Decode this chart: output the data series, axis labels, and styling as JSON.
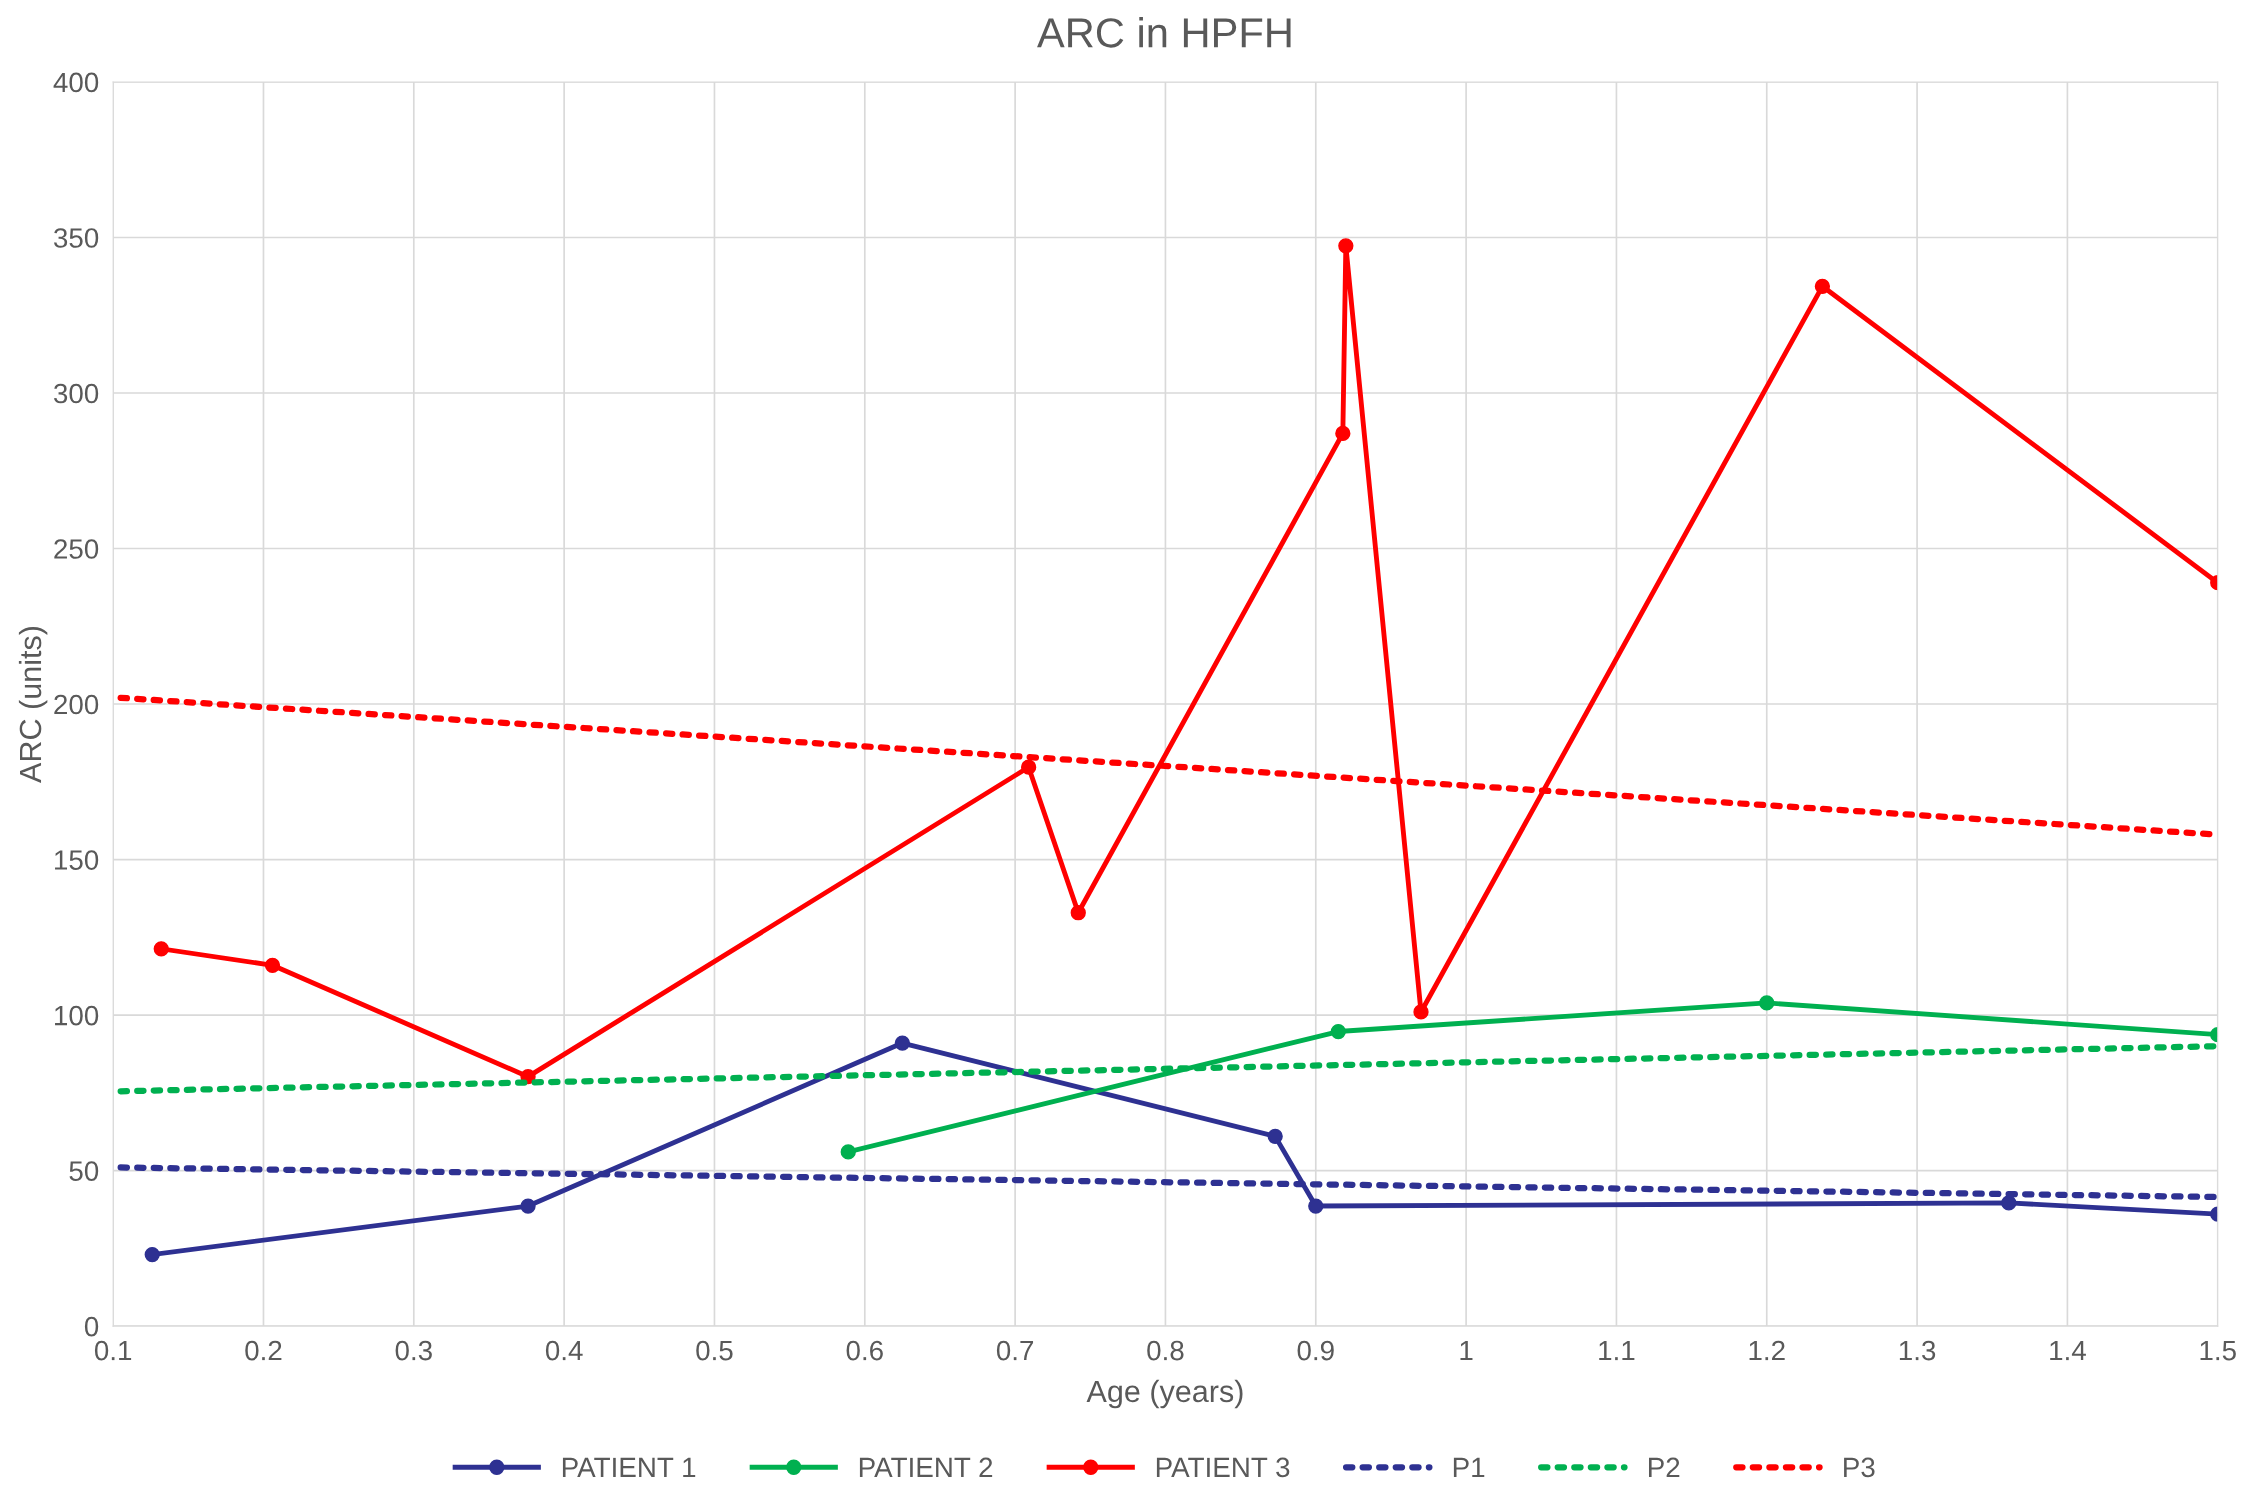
{
  "chart_data": {
    "type": "line",
    "title": "ARC in HPFH",
    "xlabel": "Age (years)",
    "ylabel": "ARC (units)",
    "xlim": [
      0.1,
      1.5
    ],
    "xticks": [
      0.1,
      0.2,
      0.3,
      0.4,
      0.5,
      0.6,
      0.7,
      0.8,
      0.9,
      1,
      1.1,
      1.2,
      1.3,
      1.4,
      1.5
    ],
    "ylim": [
      0,
      400
    ],
    "yticks": [
      0,
      50,
      100,
      150,
      200,
      250,
      300,
      350,
      400
    ],
    "grid": true,
    "legend": "bottom",
    "series": [
      {
        "name": "PATIENT 1",
        "color": "#2e3192",
        "marker": "circle",
        "line_style": "solid",
        "x": [
          0.126,
          0.376,
          0.625,
          0.873,
          0.9,
          1.361,
          1.5
        ],
        "values": [
          23,
          38.6,
          91,
          61,
          38.6,
          39.6,
          36
        ]
      },
      {
        "name": "PATIENT 2",
        "color": "#00b050",
        "marker": "circle",
        "line_style": "solid",
        "x": [
          0.589,
          0.915,
          1.2,
          1.5
        ],
        "values": [
          56,
          94.7,
          103.9,
          93.7
        ]
      },
      {
        "name": "PATIENT 3",
        "color": "#ff0000",
        "marker": "circle",
        "line_style": "solid",
        "x": [
          0.132,
          0.206,
          0.376,
          0.709,
          0.742,
          0.918,
          0.92,
          0.97,
          1.237,
          1.5
        ],
        "values": [
          121.3,
          116,
          80.2,
          179.7,
          132.9,
          287,
          347.3,
          101,
          334.3,
          239
        ]
      },
      {
        "name": "P1",
        "color": "#2e3192",
        "marker": "none",
        "line_style": "dotted",
        "x": [
          0.105,
          1.5
        ],
        "values": [
          51,
          41.5
        ]
      },
      {
        "name": "P2",
        "color": "#00b050",
        "marker": "none",
        "line_style": "dotted",
        "x": [
          0.105,
          1.5
        ],
        "values": [
          75.5,
          90
        ]
      },
      {
        "name": "P3",
        "color": "#ff0000",
        "marker": "none",
        "line_style": "dotted",
        "x": [
          0.105,
          1.5
        ],
        "values": [
          202,
          158
        ]
      }
    ]
  }
}
